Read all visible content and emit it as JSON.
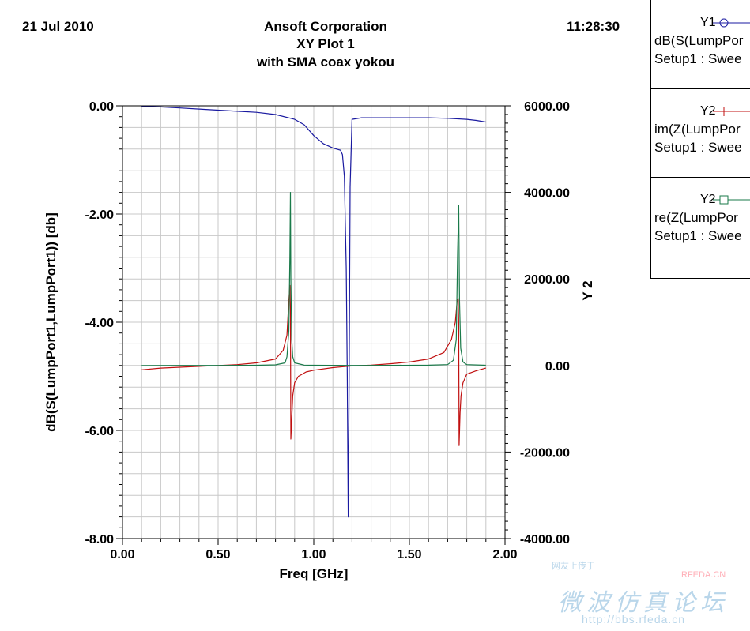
{
  "header": {
    "date": "21 Jul 2010",
    "company": "Ansoft Corporation",
    "plot_title": "XY Plot 1",
    "subtitle": "with SMA coax yokou",
    "time": "11:28:30"
  },
  "legend": [
    {
      "axis": "Y1",
      "expr": "dB(S(LumpPor",
      "setup": "Setup1 : Swee",
      "color": "#1a1aa0",
      "marker": "circle"
    },
    {
      "axis": "Y2",
      "expr": "im(Z(LumpPor",
      "setup": "Setup1 : Swee",
      "color": "#c01010",
      "marker": "plus"
    },
    {
      "axis": "Y2",
      "expr": "re(Z(LumpPor",
      "setup": "Setup1 : Swee",
      "color": "#1a7a4a",
      "marker": "square"
    }
  ],
  "watermark": {
    "line1": "网友上传于",
    "brand": "RFEDA.CN",
    "chinese": "微波仿真论坛",
    "url": "http://bbs.rfeda.cn"
  },
  "chart_data": {
    "type": "line",
    "xlabel": "Freq [GHz]",
    "ylabel_left": "dB(S(LumpPort1,LumpPort1)) [db]",
    "ylabel_right": "Y 2",
    "xlim": [
      0.0,
      2.0
    ],
    "ylim_left": [
      -8.0,
      0.0
    ],
    "ylim_right": [
      -4000.0,
      6000.0
    ],
    "x_ticks": [
      "0.00",
      "0.50",
      "1.00",
      "1.50",
      "2.00"
    ],
    "y_left_ticks": [
      "0.00",
      "-2.00",
      "-4.00",
      "-6.00",
      "-8.00"
    ],
    "y_right_ticks": [
      "6000.00",
      "4000.00",
      "2000.00",
      "0.00",
      "-2000.00",
      "-4000.00"
    ],
    "grid": true,
    "series": [
      {
        "axis": "Y1",
        "color": "#1a1aa0",
        "x": [
          0.1,
          0.2,
          0.3,
          0.4,
          0.5,
          0.6,
          0.7,
          0.8,
          0.9,
          0.95,
          1.0,
          1.05,
          1.1,
          1.12,
          1.14,
          1.15,
          1.16,
          1.17,
          1.175,
          1.18,
          1.185,
          1.19,
          1.2,
          1.25,
          1.3,
          1.4,
          1.5,
          1.6,
          1.7,
          1.8,
          1.85,
          1.9
        ],
        "y": [
          -0.01,
          -0.02,
          -0.04,
          -0.06,
          -0.08,
          -0.1,
          -0.12,
          -0.16,
          -0.25,
          -0.35,
          -0.55,
          -0.7,
          -0.78,
          -0.8,
          -0.82,
          -0.9,
          -1.3,
          -3.0,
          -5.0,
          -7.6,
          -5.0,
          -1.5,
          -0.25,
          -0.22,
          -0.22,
          -0.22,
          -0.22,
          -0.22,
          -0.23,
          -0.25,
          -0.27,
          -0.3
        ]
      },
      {
        "axis": "Y2",
        "color": "#c01010",
        "x": [
          0.1,
          0.2,
          0.3,
          0.4,
          0.5,
          0.6,
          0.7,
          0.8,
          0.84,
          0.86,
          0.87,
          0.875,
          0.878,
          0.88,
          0.885,
          0.89,
          0.9,
          0.92,
          0.96,
          1.0,
          1.1,
          1.2,
          1.3,
          1.4,
          1.5,
          1.6,
          1.68,
          1.72,
          1.74,
          1.75,
          1.755,
          1.758,
          1.76,
          1.765,
          1.77,
          1.78,
          1.8,
          1.85,
          1.9
        ],
        "y": [
          -100,
          -60,
          -40,
          -20,
          0,
          20,
          60,
          150,
          350,
          700,
          1500,
          1850,
          1300,
          -1700,
          -1200,
          -700,
          -400,
          -250,
          -150,
          -110,
          -50,
          -10,
          10,
          40,
          80,
          150,
          300,
          600,
          1000,
          1500,
          1550,
          1000,
          -1850,
          -1100,
          -700,
          -400,
          -200,
          -120,
          -60
        ]
      },
      {
        "axis": "Y2",
        "color": "#1a7a4a",
        "x": [
          0.1,
          0.3,
          0.5,
          0.7,
          0.8,
          0.85,
          0.86,
          0.87,
          0.875,
          0.878,
          0.88,
          0.885,
          0.89,
          0.9,
          0.95,
          1.0,
          1.2,
          1.4,
          1.6,
          1.7,
          1.73,
          1.745,
          1.752,
          1.758,
          1.762,
          1.768,
          1.78,
          1.8,
          1.9
        ],
        "y": [
          0,
          1,
          2,
          5,
          15,
          60,
          200,
          800,
          2500,
          4000,
          2000,
          600,
          200,
          60,
          10,
          5,
          2,
          3,
          8,
          20,
          120,
          600,
          2600,
          3700,
          1500,
          400,
          80,
          20,
          5
        ]
      }
    ]
  }
}
